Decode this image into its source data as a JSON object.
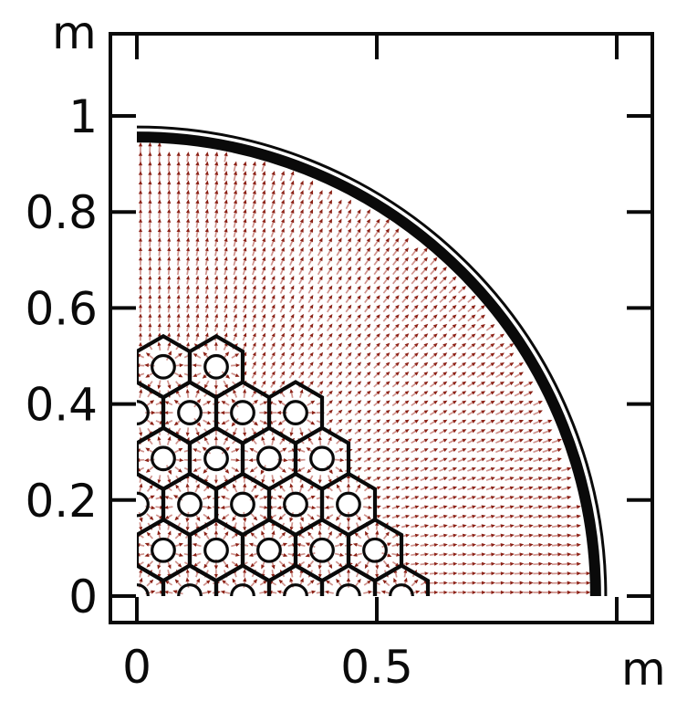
{
  "figure": {
    "background": "#ffffff",
    "axis_color": "#0a0a0a",
    "x_unit_label": "m",
    "y_unit_label": "m"
  },
  "chart_data": {
    "type": "quiver",
    "title": "",
    "description": "Quarter-symmetry cross-section of a hexagonal reactor core lattice: red flux vectors point radially outward from the origin and locally outward from each pin; thick circular vessel-wall arc with a thin outer boundary arc.",
    "x_unit": "m",
    "y_unit": "m",
    "xlim": [
      0,
      1.075
    ],
    "ylim": [
      0,
      1.173
    ],
    "x_ticks": {
      "values": [
        0,
        0.5,
        1.0
      ],
      "labels": [
        "0",
        "0.5",
        ""
      ]
    },
    "y_ticks": {
      "values": [
        0,
        0.2,
        0.4,
        0.6,
        0.8,
        1.0
      ],
      "labels": [
        "0",
        "0.2",
        "0.4",
        "0.6",
        "0.8",
        "1"
      ]
    },
    "grid": false,
    "legend": false,
    "vessel": {
      "center_m": [
        0,
        0
      ],
      "thick_arc_radius_m": 0.956,
      "thick_arc_stroke_m": 0.0228,
      "thin_arc_radius_m": 0.977,
      "thin_arc_stroke_m": 0.0057
    },
    "lattice": {
      "cell_shape": "hexagon-pointy-top",
      "pitch_m": 0.1103,
      "hex_side_m": 0.0637,
      "pin_radius_m": 0.0234,
      "rows": [
        {
          "y_m": 0.0,
          "x_m": [
            0,
            0.1103,
            0.2205,
            0.3308,
            0.441,
            0.5513
          ]
        },
        {
          "y_m": 0.0955,
          "x_m": [
            0.0551,
            0.1654,
            0.2756,
            0.3859,
            0.4962
          ]
        },
        {
          "y_m": 0.191,
          "x_m": [
            0,
            0.1103,
            0.2205,
            0.3308,
            0.441
          ]
        },
        {
          "y_m": 0.2865,
          "x_m": [
            0.0551,
            0.1654,
            0.2756,
            0.3859
          ]
        },
        {
          "y_m": 0.382,
          "x_m": [
            0,
            0.1103,
            0.2205,
            0.3308
          ]
        },
        {
          "y_m": 0.4775,
          "x_m": [
            0.0551,
            0.1654
          ]
        }
      ]
    },
    "field": {
      "grid_spacing_m": 0.0197,
      "max_radius_m": 0.935,
      "direction": "radial outward from (0,0); inside a lattice cell, radial outward from that cell's pin",
      "arrow_shaft_color": "#cf938d",
      "arrow_head_color": "#8b2015"
    }
  }
}
